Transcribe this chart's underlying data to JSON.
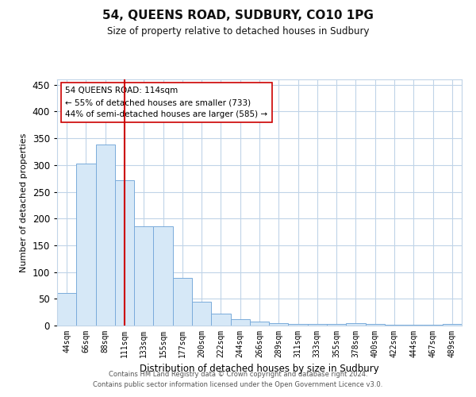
{
  "title": "54, QUEENS ROAD, SUDBURY, CO10 1PG",
  "subtitle": "Size of property relative to detached houses in Sudbury",
  "xlabel": "Distribution of detached houses by size in Sudbury",
  "ylabel": "Number of detached properties",
  "categories": [
    "44sqm",
    "66sqm",
    "88sqm",
    "111sqm",
    "133sqm",
    "155sqm",
    "177sqm",
    "200sqm",
    "222sqm",
    "244sqm",
    "266sqm",
    "289sqm",
    "311sqm",
    "333sqm",
    "355sqm",
    "378sqm",
    "400sqm",
    "422sqm",
    "444sqm",
    "467sqm",
    "489sqm"
  ],
  "values": [
    61,
    303,
    338,
    272,
    185,
    185,
    89,
    45,
    22,
    12,
    8,
    5,
    3,
    3,
    3,
    5,
    3,
    1,
    2,
    1,
    3
  ],
  "bar_color": "#d6e8f7",
  "bar_edge_color": "#7aabdb",
  "vline_color": "#cc0000",
  "annotation_text": "54 QUEENS ROAD: 114sqm\n← 55% of detached houses are smaller (733)\n44% of semi-detached houses are larger (585) →",
  "annotation_box_color": "#ffffff",
  "annotation_box_edge": "#cc0000",
  "ylim": [
    0,
    460
  ],
  "yticks": [
    0,
    50,
    100,
    150,
    200,
    250,
    300,
    350,
    400,
    450
  ],
  "background_color": "#ffffff",
  "grid_color": "#c0d4e8",
  "footer_line1": "Contains HM Land Registry data © Crown copyright and database right 2024.",
  "footer_line2": "Contains public sector information licensed under the Open Government Licence v3.0."
}
